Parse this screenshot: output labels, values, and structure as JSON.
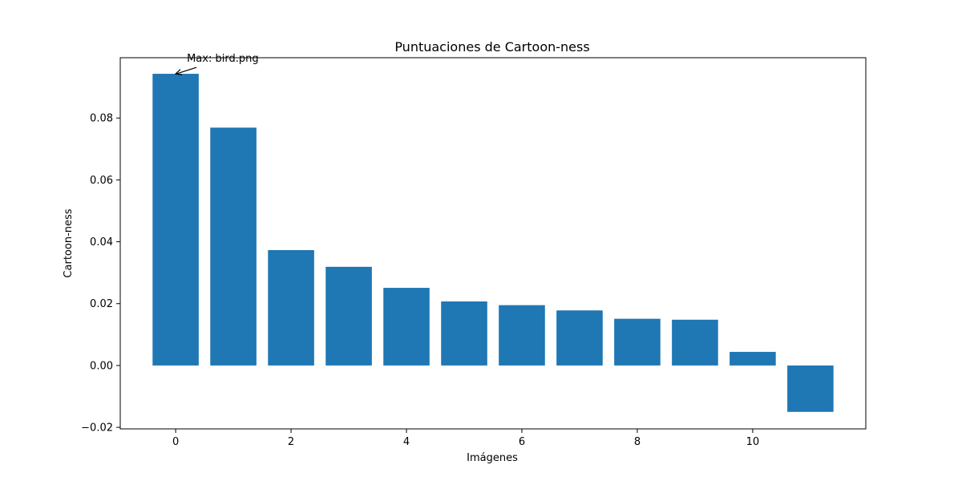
{
  "chart_data": {
    "type": "bar",
    "title": "Puntuaciones de Cartoon-ness",
    "xlabel": "Imágenes",
    "ylabel": "Cartoon-ness",
    "x": [
      0,
      1,
      2,
      3,
      4,
      5,
      6,
      7,
      8,
      9,
      10,
      11
    ],
    "values": [
      0.0943,
      0.0769,
      0.0373,
      0.0319,
      0.0251,
      0.0207,
      0.0195,
      0.0178,
      0.0151,
      0.0148,
      0.0044,
      -0.015
    ],
    "xlim": [
      -0.96,
      11.96
    ],
    "ylim": [
      -0.0205,
      0.0995
    ],
    "xticks": [
      0,
      2,
      4,
      6,
      8,
      10
    ],
    "xtick_labels": [
      "0",
      "2",
      "4",
      "6",
      "8",
      "10"
    ],
    "yticks": [
      -0.02,
      0.0,
      0.02,
      0.04,
      0.06,
      0.08
    ],
    "ytick_labels": [
      "−0.02",
      "0.00",
      "0.02",
      "0.04",
      "0.06",
      "0.08"
    ],
    "bar_color": "#1f77b4",
    "grid": false,
    "annotation": {
      "text": "Max: bird.png",
      "x": 0,
      "y": 0.0943
    }
  }
}
